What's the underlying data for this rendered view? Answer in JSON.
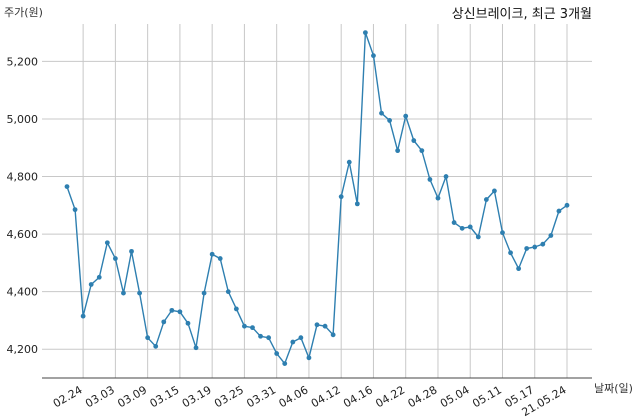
{
  "chart_data": {
    "type": "line",
    "title": "상신브레이크, 최근 3개월",
    "ylabel": "주가(원)",
    "xlabel": "날짜(일)",
    "ylim": [
      4100,
      5330
    ],
    "grid": true,
    "legend": "none",
    "line_color": "#2e7fb0",
    "x_tick_labels": [
      "02.24",
      "03.03",
      "03.09",
      "03.15",
      "03.19",
      "03.25",
      "03.31",
      "04.06",
      "04.12",
      "04.16",
      "04.22",
      "04.28",
      "05.04",
      "05.11",
      "05.17",
      "21.05.24"
    ],
    "x_tick_positions": [
      2,
      6,
      10,
      14,
      18,
      22,
      26,
      30,
      34,
      38,
      42,
      46,
      50,
      54,
      58,
      62
    ],
    "y_ticks": [
      4200,
      4400,
      4600,
      4800,
      5000,
      5200
    ],
    "y_tick_labels": [
      "4,200",
      "4,400",
      "4,600",
      "4,800",
      "5,000",
      "5,200"
    ],
    "series": [
      {
        "values": [
          4765,
          4685,
          4315,
          4425,
          4450,
          4570,
          4515,
          4395,
          4540,
          4395,
          4240,
          4210,
          4295,
          4335,
          4330,
          4290,
          4205,
          4395,
          4530,
          4515,
          4400,
          4340,
          4280,
          4275,
          4245,
          4240,
          4185,
          4150,
          4225,
          4240,
          4170,
          4285,
          4280,
          4250,
          4730,
          4850,
          4705,
          5300,
          5220,
          5020,
          4995,
          4890,
          5010,
          4925,
          4890,
          4790,
          4725,
          4800,
          4640,
          4620,
          4625,
          4590,
          4720,
          4750,
          4605,
          4535,
          4480,
          4550,
          4555,
          4565,
          4595,
          4680,
          4700
        ]
      }
    ]
  }
}
